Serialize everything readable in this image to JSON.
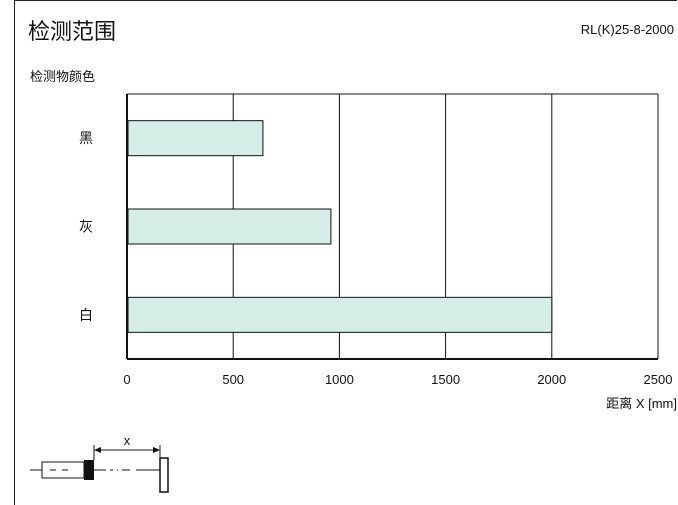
{
  "header": {
    "title": "检测范围",
    "model": "RL(K)25-8-2000"
  },
  "chart_data": {
    "type": "bar",
    "orientation": "horizontal",
    "title": "检测范围",
    "ylabel": "检测物颜色",
    "xlabel": "距离 X [mm]",
    "categories": [
      "黑",
      "灰",
      "白"
    ],
    "values": [
      640,
      960,
      2000
    ],
    "xlim": [
      0,
      2500
    ],
    "xticks": [
      "0",
      "500",
      "1000",
      "1500",
      "2000",
      "2500"
    ],
    "grid": true,
    "bar_color": "#d4ede6"
  },
  "diagram": {
    "distance_label": "x"
  }
}
